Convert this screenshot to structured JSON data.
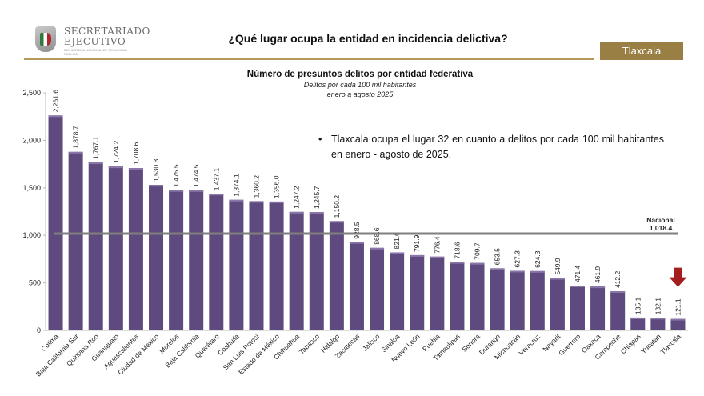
{
  "header": {
    "org_line1": "SECRETARIADO",
    "org_line2": "EJECUTIVO",
    "org_line3": "DEL SISTEMA NACIONAL DE SEGURIDAD PÚBLICA",
    "title": "¿Qué lugar ocupa la entidad en incidencia delictiva?",
    "entity_badge": "Tlaxcala"
  },
  "note": "Tlaxcala ocupa el lugar 32 en cuanto a delitos por cada 100 mil habitantes en enero - agosto de 2025.",
  "colors": {
    "bar": "#5e4a7e",
    "reference_line": "#7f7f7f",
    "arrow": "#a51e1e",
    "accent": "#9a7f45"
  },
  "chart_data": {
    "type": "bar",
    "title": "Número de presuntos delitos por entidad federativa",
    "subtitle": [
      "Delitos por cada 100 mil habitantes",
      "enero a agosto 2025"
    ],
    "categories": [
      "Colima",
      "Baja California Sur",
      "Quintana Roo",
      "Guanajuato",
      "Aguascalientes",
      "Ciudad de México",
      "Morelos",
      "Baja California",
      "Querétaro",
      "Coahuila",
      "San Luis Potosí",
      "Estado de México",
      "Chihuahua",
      "Tabasco",
      "Hidalgo",
      "Zacatecas",
      "Jalisco",
      "Sinaloa",
      "Nuevo León",
      "Puebla",
      "Tamaulipas",
      "Sonora",
      "Durango",
      "Michoacán",
      "Veracruz",
      "Nayarit",
      "Guerrero",
      "Oaxaca",
      "Campeche",
      "Chiapas",
      "Yucatán",
      "Tlaxcala"
    ],
    "values": [
      2261.6,
      1878.7,
      1767.1,
      1724.2,
      1708.6,
      1530.8,
      1475.5,
      1474.5,
      1437.1,
      1374.1,
      1360.2,
      1356.0,
      1247.2,
      1245.7,
      1150.2,
      928.5,
      868.6,
      821.0,
      791.9,
      776.4,
      718.6,
      709.7,
      653.5,
      627.3,
      624.3,
      549.9,
      471.4,
      461.9,
      412.2,
      135.1,
      132.1,
      121.1
    ],
    "value_labels": [
      "2,261.6",
      "1,878.7",
      "1,767.1",
      "1,724.2",
      "1,708.6",
      "1,530.8",
      "1,475.5",
      "1,474.5",
      "1,437.1",
      "1,374.1",
      "1,360.2",
      "1,356.0",
      "1,247.2",
      "1,245.7",
      "1,150.2",
      "928.5",
      "868.6",
      "821.0",
      "791.9",
      "776.4",
      "718.6",
      "709.7",
      "653.5",
      "627.3",
      "624.3",
      "549.9",
      "471.4",
      "461.9",
      "412.2",
      "135.1",
      "132.1",
      "121.1"
    ],
    "ylim": [
      0,
      2500
    ],
    "yticks": [
      "0",
      "500",
      "1,000",
      "1,500",
      "2,000",
      "2,500"
    ],
    "reference": {
      "label": "Nacional",
      "value": 1018.4,
      "value_label": "1,018.4"
    },
    "highlight": "Tlaxcala",
    "grid": false
  }
}
